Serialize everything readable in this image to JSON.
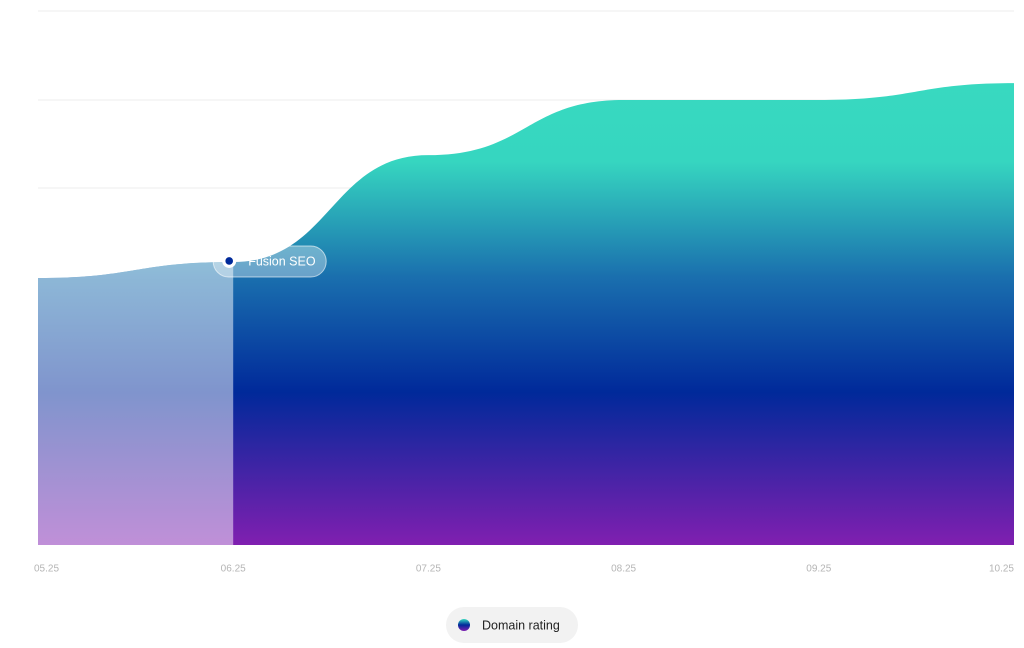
{
  "chart_data": {
    "type": "area",
    "categories": [
      "05.25",
      "06.25",
      "07.25",
      "08.25",
      "09.25",
      "10.25"
    ],
    "series": [
      {
        "name": "Domain rating",
        "color": "#002a9a",
        "values": [
          3.0,
          3.18,
          4.38,
          5.0,
          5.0,
          5.19
        ]
      }
    ],
    "ylim": [
      0,
      6
    ],
    "annotation": {
      "label": "Fusion SEO",
      "index": 1
    }
  }
}
